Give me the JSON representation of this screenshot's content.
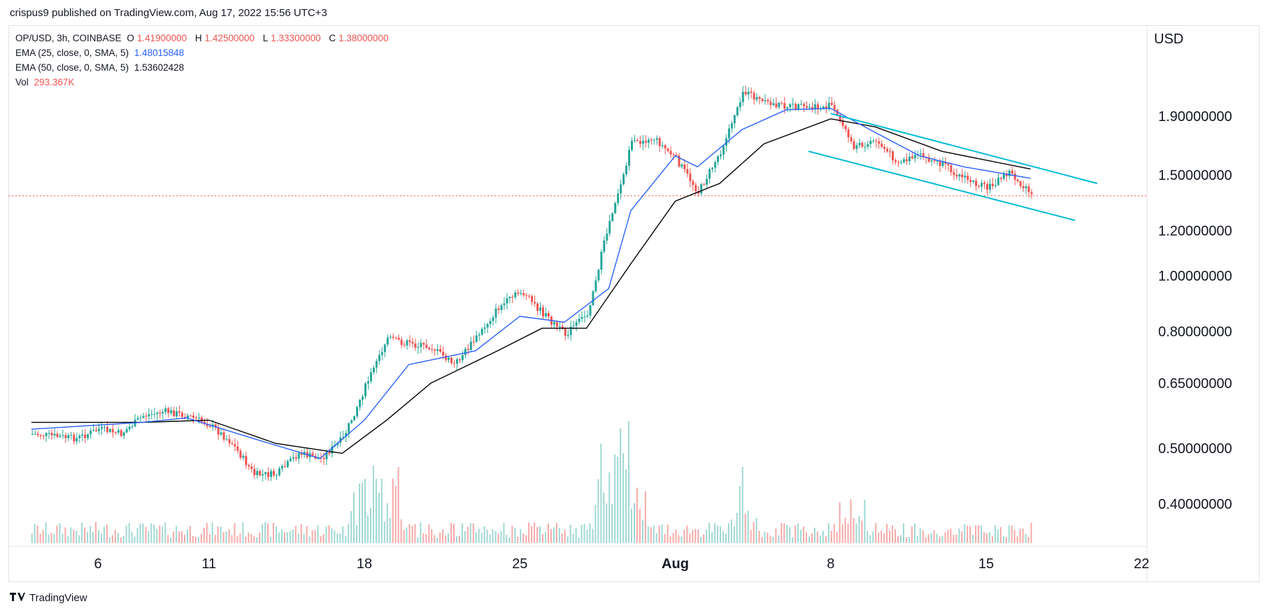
{
  "header": {
    "attribution": "crispus9 published on TradingView.com, Aug 17, 2022 15:56 UTC+3"
  },
  "legend": {
    "symbol": "OP/USD, 3h, COINBASE",
    "open_label": "O",
    "open": "1.41900000",
    "high_label": "H",
    "high": "1.42500000",
    "low_label": "L",
    "low": "1.33300000",
    "close_label": "C",
    "close": "1.38000000",
    "ema25_label": "EMA (25, close, 0, SMA, 5)",
    "ema25_value": "1.48015848",
    "ema50_label": "EMA (50, close, 0, SMA, 5)",
    "ema50_value": "1.53602428",
    "vol_label": "Vol",
    "vol_value": "293.367K"
  },
  "footer": {
    "brand": "TradingView"
  },
  "colors": {
    "up": "#26a69a",
    "down": "#ef5350",
    "ema25": "#2962ff",
    "ema50": "#000000",
    "channel": "#00bcd4",
    "price_line": "#ef5350",
    "vol_up": "#9fd8d3",
    "vol_down": "#f7a9a7"
  },
  "chart_data": {
    "type": "candlestick",
    "currency_label": "USD",
    "y_scale": "log",
    "y_ticks": [
      "1.90000000",
      "1.50000000",
      "1.20000000",
      "1.00000000",
      "0.80000000",
      "0.65000000",
      "0.50000000",
      "0.40000000"
    ],
    "x_ticks": [
      "6",
      "11",
      "18",
      "25",
      "Aug",
      "8",
      "15",
      "22"
    ],
    "last_price": 1.38,
    "channel": {
      "upper": [
        {
          "x": "Aug 8",
          "y": 1.92
        },
        {
          "x": "Aug 20",
          "y": 1.45
        }
      ],
      "lower": [
        {
          "x": "Aug 7",
          "y": 1.65
        },
        {
          "x": "Aug 19",
          "y": 1.25
        }
      ]
    },
    "price_path": [
      {
        "x": "Jul 3",
        "y": 0.53
      },
      {
        "x": "Jul 5",
        "y": 0.52
      },
      {
        "x": "Jul 6",
        "y": 0.54
      },
      {
        "x": "Jul 7",
        "y": 0.53
      },
      {
        "x": "Jul 8",
        "y": 0.57
      },
      {
        "x": "Jul 9",
        "y": 0.58
      },
      {
        "x": "Jul 10",
        "y": 0.57
      },
      {
        "x": "Jul 11",
        "y": 0.55
      },
      {
        "x": "Jul 12",
        "y": 0.51
      },
      {
        "x": "Jul 13",
        "y": 0.45
      },
      {
        "x": "Jul 14",
        "y": 0.45
      },
      {
        "x": "Jul 15",
        "y": 0.49
      },
      {
        "x": "Jul 16",
        "y": 0.48
      },
      {
        "x": "Jul 17",
        "y": 0.52
      },
      {
        "x": "Jul 18",
        "y": 0.64
      },
      {
        "x": "Jul 19",
        "y": 0.78
      },
      {
        "x": "Jul 20",
        "y": 0.76
      },
      {
        "x": "Jul 21",
        "y": 0.75
      },
      {
        "x": "Jul 22",
        "y": 0.7
      },
      {
        "x": "Jul 23",
        "y": 0.78
      },
      {
        "x": "Jul 24",
        "y": 0.88
      },
      {
        "x": "Jul 25",
        "y": 0.94
      },
      {
        "x": "Jul 26",
        "y": 0.86
      },
      {
        "x": "Jul 27",
        "y": 0.79
      },
      {
        "x": "Jul 28",
        "y": 0.86
      },
      {
        "x": "Jul 29",
        "y": 1.25
      },
      {
        "x": "Jul 30",
        "y": 1.7
      },
      {
        "x": "Jul 31",
        "y": 1.74
      },
      {
        "x": "Aug 1",
        "y": 1.6
      },
      {
        "x": "Aug 2",
        "y": 1.4
      },
      {
        "x": "Aug 3",
        "y": 1.65
      },
      {
        "x": "Aug 4",
        "y": 2.1
      },
      {
        "x": "Aug 5",
        "y": 2.0
      },
      {
        "x": "Aug 6",
        "y": 1.98
      },
      {
        "x": "Aug 7",
        "y": 1.96
      },
      {
        "x": "Aug 8",
        "y": 1.98
      },
      {
        "x": "Aug 9",
        "y": 1.68
      },
      {
        "x": "Aug 10",
        "y": 1.72
      },
      {
        "x": "Aug 11",
        "y": 1.58
      },
      {
        "x": "Aug 12",
        "y": 1.62
      },
      {
        "x": "Aug 13",
        "y": 1.56
      },
      {
        "x": "Aug 14",
        "y": 1.48
      },
      {
        "x": "Aug 15",
        "y": 1.42
      },
      {
        "x": "Aug 16",
        "y": 1.52
      },
      {
        "x": "Aug 17",
        "y": 1.38
      }
    ],
    "ema25_path": [
      {
        "x": "Jul 3",
        "y": 0.54
      },
      {
        "x": "Jul 8",
        "y": 0.555
      },
      {
        "x": "Jul 10",
        "y": 0.565
      },
      {
        "x": "Jul 13",
        "y": 0.52
      },
      {
        "x": "Jul 16",
        "y": 0.48
      },
      {
        "x": "Jul 18",
        "y": 0.56
      },
      {
        "x": "Jul 20",
        "y": 0.7
      },
      {
        "x": "Jul 23",
        "y": 0.74
      },
      {
        "x": "Jul 25",
        "y": 0.85
      },
      {
        "x": "Jul 27",
        "y": 0.83
      },
      {
        "x": "Jul 29",
        "y": 0.95
      },
      {
        "x": "Jul 30",
        "y": 1.3
      },
      {
        "x": "Aug 1",
        "y": 1.62
      },
      {
        "x": "Aug 2",
        "y": 1.55
      },
      {
        "x": "Aug 4",
        "y": 1.8
      },
      {
        "x": "Aug 6",
        "y": 1.95
      },
      {
        "x": "Aug 8",
        "y": 1.96
      },
      {
        "x": "Aug 10",
        "y": 1.78
      },
      {
        "x": "Aug 12",
        "y": 1.62
      },
      {
        "x": "Aug 14",
        "y": 1.55
      },
      {
        "x": "Aug 17",
        "y": 1.48
      }
    ],
    "ema50_path": [
      {
        "x": "Jul 3",
        "y": 0.555
      },
      {
        "x": "Jul 8",
        "y": 0.555
      },
      {
        "x": "Jul 11",
        "y": 0.56
      },
      {
        "x": "Jul 14",
        "y": 0.51
      },
      {
        "x": "Jul 17",
        "y": 0.49
      },
      {
        "x": "Jul 19",
        "y": 0.56
      },
      {
        "x": "Jul 21",
        "y": 0.65
      },
      {
        "x": "Jul 24",
        "y": 0.74
      },
      {
        "x": "Jul 26",
        "y": 0.81
      },
      {
        "x": "Jul 28",
        "y": 0.81
      },
      {
        "x": "Jul 30",
        "y": 1.05
      },
      {
        "x": "Aug 1",
        "y": 1.35
      },
      {
        "x": "Aug 3",
        "y": 1.45
      },
      {
        "x": "Aug 5",
        "y": 1.7
      },
      {
        "x": "Aug 8",
        "y": 1.88
      },
      {
        "x": "Aug 10",
        "y": 1.82
      },
      {
        "x": "Aug 13",
        "y": 1.65
      },
      {
        "x": "Aug 17",
        "y": 1.536
      }
    ],
    "volume_spikes": [
      {
        "x": "Jul 18",
        "value": 0.55
      },
      {
        "x": "Jul 19",
        "value": 0.6
      },
      {
        "x": "Jul 29",
        "value": 0.75
      },
      {
        "x": "Jul 30",
        "value": 1.0
      },
      {
        "x": "Aug 4",
        "value": 0.55
      },
      {
        "x": "Aug 9",
        "value": 0.3
      }
    ]
  }
}
